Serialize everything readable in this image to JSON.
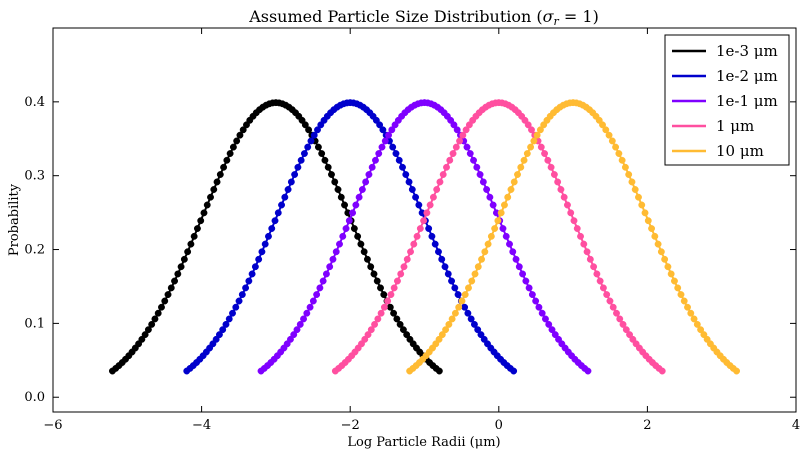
{
  "chart_data": {
    "type": "line",
    "title": "Assumed Particle Size Distribution (σ_r = 1)",
    "title_main": "Assumed Particle Size Distribution (",
    "title_sigma": "σ",
    "title_sub": "r",
    "title_tail": " = 1)",
    "xlabel": "Log Particle Radii (μm)",
    "ylabel": "Probability",
    "xlim": [
      -6,
      4
    ],
    "ylim": [
      -0.02,
      0.5
    ],
    "xticks": [
      -6,
      -4,
      -2,
      0,
      2,
      4
    ],
    "xtick_labels": [
      "−6",
      "−4",
      "−2",
      "0",
      "2",
      "4"
    ],
    "yticks": [
      0.0,
      0.1,
      0.2,
      0.3,
      0.4
    ],
    "ytick_labels": [
      "0.0",
      "0.1",
      "0.2",
      "0.3",
      "0.4"
    ],
    "grid": false,
    "legend_position": "top-right",
    "markers": true,
    "series": [
      {
        "name": "1e-3 μm",
        "color": "#000000",
        "mean": -3,
        "sigma": 1,
        "x_range": [
          -5.2,
          -0.8
        ],
        "n_points": 101
      },
      {
        "name": "1e-2 μm",
        "color": "#0000cc",
        "mean": -2,
        "sigma": 1,
        "x_range": [
          -4.2,
          0.2
        ],
        "n_points": 101
      },
      {
        "name": "1e-1 μm",
        "color": "#7f00ff",
        "mean": -1,
        "sigma": 1,
        "x_range": [
          -3.2,
          1.2
        ],
        "n_points": 101
      },
      {
        "name": "1 μm",
        "color": "#ff4fa0",
        "mean": 0,
        "sigma": 1,
        "x_range": [
          -2.2,
          2.2
        ],
        "n_points": 101
      },
      {
        "name": "10 μm",
        "color": "#ffbb33",
        "mean": 1,
        "sigma": 1,
        "x_range": [
          -1.2,
          3.2
        ],
        "n_points": 101
      }
    ]
  }
}
